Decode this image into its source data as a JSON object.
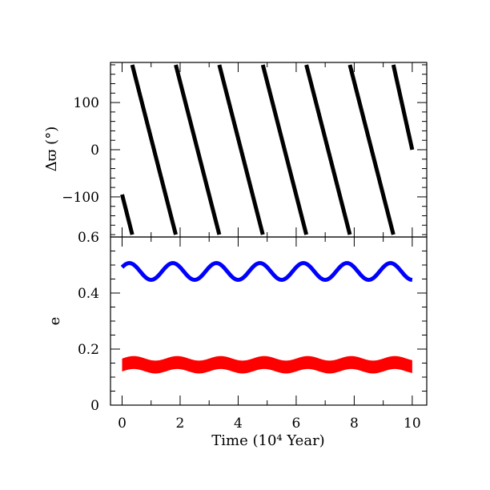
{
  "chart_data": [
    {
      "type": "scatter",
      "panel": "top",
      "ylabel": "Δϖ (°)",
      "xlim": [
        -0.4,
        10.5
      ],
      "ylim": [
        -185,
        185
      ],
      "yticks": [
        -100,
        0,
        100
      ],
      "ytick_labels": [
        "−100",
        "0",
        "100"
      ],
      "grid": false,
      "series": [
        {
          "color": "#000000",
          "segments": [
            [
              [
                0.0,
                -95
              ],
              [
                0.35,
                -180
              ]
            ],
            [
              [
                0.35,
                180
              ],
              [
                1.85,
                -180
              ]
            ],
            [
              [
                1.85,
                180
              ],
              [
                3.35,
                -180
              ]
            ],
            [
              [
                3.35,
                180
              ],
              [
                4.85,
                -180
              ]
            ],
            [
              [
                4.85,
                180
              ],
              [
                6.35,
                -180
              ]
            ],
            [
              [
                6.35,
                180
              ],
              [
                7.85,
                -180
              ]
            ],
            [
              [
                7.85,
                180
              ],
              [
                9.35,
                -180
              ]
            ],
            [
              [
                9.35,
                180
              ],
              [
                10.0,
                0
              ]
            ]
          ]
        }
      ]
    },
    {
      "type": "scatter",
      "panel": "bottom",
      "xlabel": "Time (10⁴ Year)",
      "ylabel": "e",
      "xlim": [
        -0.4,
        10.5
      ],
      "ylim": [
        0,
        0.6
      ],
      "xticks": [
        0,
        2,
        4,
        6,
        8,
        10
      ],
      "xtick_labels": [
        "0",
        "2",
        "4",
        "6",
        "8",
        "10"
      ],
      "yticks": [
        0,
        0.2,
        0.4,
        0.6
      ],
      "ytick_labels": [
        "0",
        "0.2",
        "0.4",
        "0.6"
      ],
      "grid": false,
      "series": [
        {
          "color": "#0000ff",
          "x_range": [
            0,
            10
          ],
          "mean": 0.477,
          "amplitude": 0.03,
          "period": 1.5,
          "phase_x": 0.0,
          "thickness": 0.008
        },
        {
          "color": "#ff0000",
          "x_range": [
            0,
            10
          ],
          "mean": 0.138,
          "amplitude": 0.008,
          "period": 1.5,
          "phase_x": 0.0,
          "band_low": 0.017,
          "band_high": 0.029
        }
      ]
    }
  ]
}
